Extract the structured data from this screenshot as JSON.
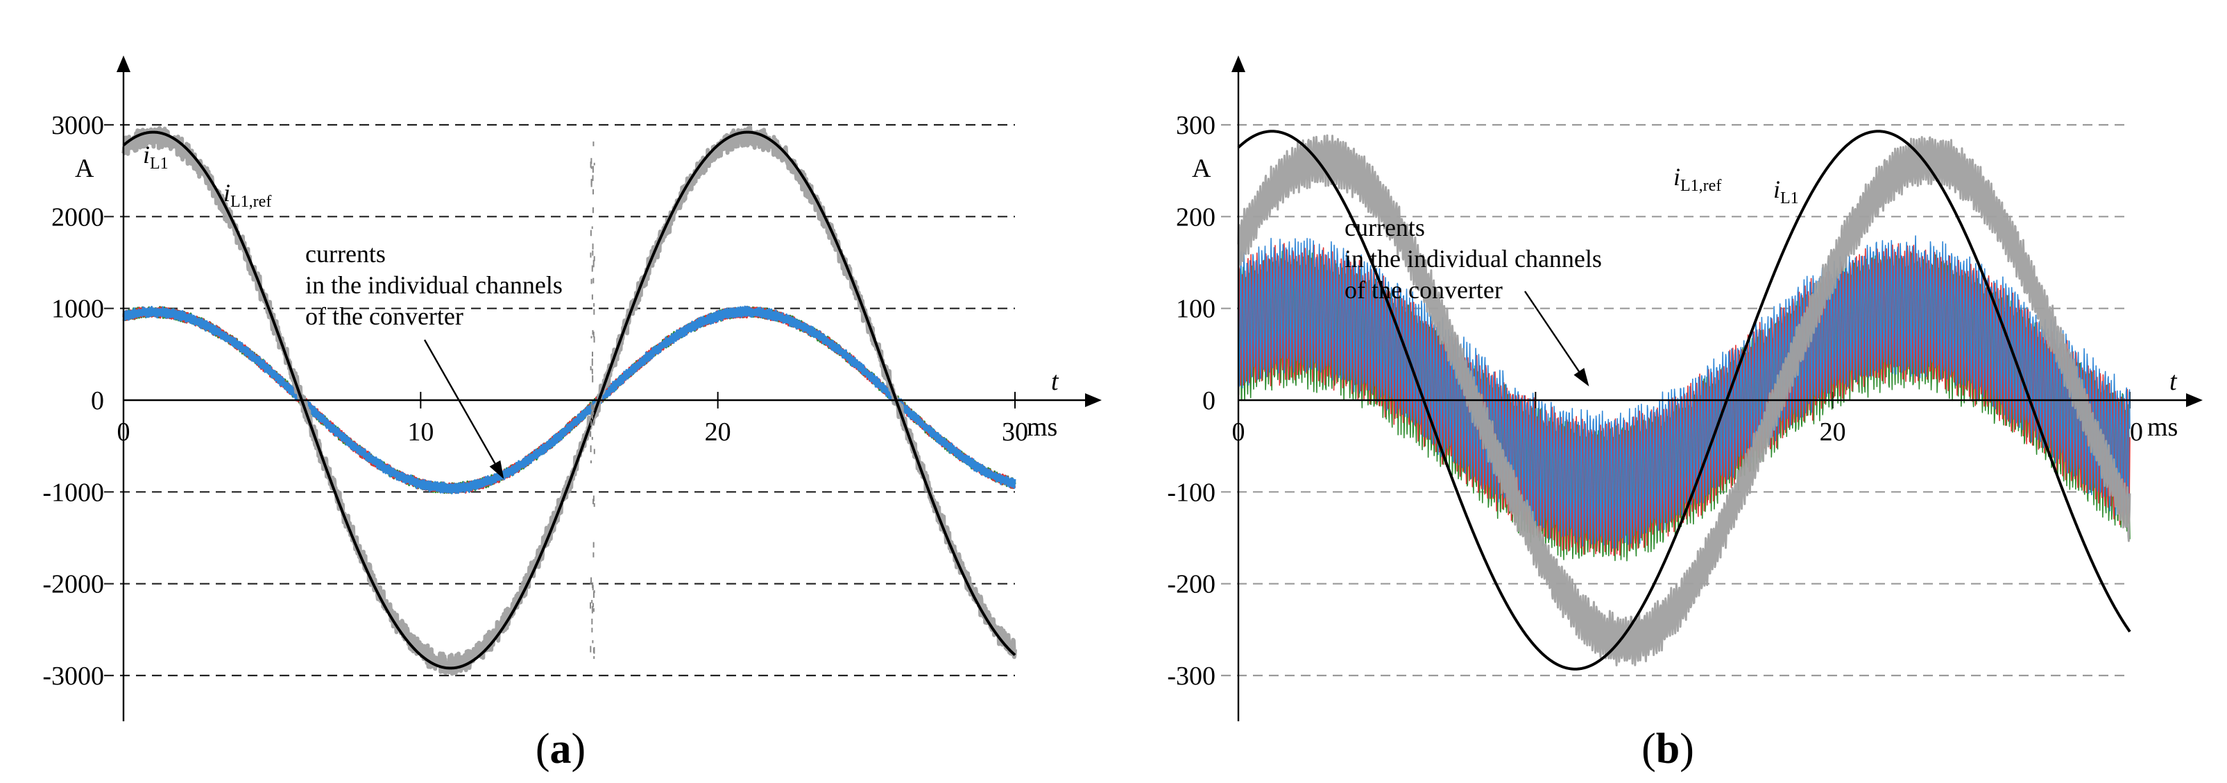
{
  "chart_data": [
    {
      "id": "a",
      "type": "line",
      "caption": {
        "open": "(",
        "letter": "a",
        "close": ")"
      },
      "xlabel": "t",
      "xunit": "ms",
      "yunit": "A",
      "xlim": [
        0,
        30
      ],
      "ylim": [
        -3000,
        3000
      ],
      "xticks": [
        0,
        10,
        20,
        30
      ],
      "xtick_labels": [
        "0",
        "10",
        "20",
        "30"
      ],
      "yticks": [
        3000,
        2000,
        1000,
        0,
        -1000,
        -2000,
        -3000
      ],
      "ytick_labels": [
        "3000",
        "2000",
        "1000",
        "0",
        "-1000",
        "-2000",
        "-3000"
      ],
      "grid": "dashed horizontal",
      "annotation": {
        "lines": [
          "currents",
          "in the individual channels",
          "of the converter"
        ],
        "arrow_target": [
          12.8,
          -860
        ]
      },
      "labels": [
        {
          "text": "i",
          "sub": "L1",
          "series": "i_L1"
        },
        {
          "text": "i",
          "sub": "L1,ref",
          "series": "i_L1_ref"
        }
      ],
      "series": [
        {
          "name": "i_L1,ref",
          "color": "#000000",
          "amplitude": 2920,
          "period_ms": 20,
          "phase_deg": 72,
          "x": [
            0,
            1.0,
            6.0,
            11.0,
            16.0,
            21.0,
            26.0,
            30
          ],
          "values": [
            2780,
            2920,
            0,
            -2920,
            0,
            2920,
            0,
            -2780
          ]
        },
        {
          "name": "i_L1",
          "color": "#a0a0a0",
          "amplitude": 2870,
          "period_ms": 20,
          "phase_deg": 72,
          "x": [
            0,
            1.0,
            6.0,
            11.0,
            16.0,
            21.0,
            26.0,
            30
          ],
          "values": [
            2730,
            2870,
            0,
            -2870,
            0,
            2870,
            0,
            -2730
          ]
        },
        {
          "name": "channel 1",
          "color": "#2e8b2e",
          "amplitude": 960,
          "period_ms": 20,
          "phase_deg": 72,
          "x": [
            0,
            1.0,
            6.0,
            11.0,
            16.0,
            21.0,
            26.0,
            30
          ],
          "values": [
            910,
            960,
            0,
            -960,
            0,
            960,
            0,
            -910
          ]
        },
        {
          "name": "channel 2",
          "color": "#e23030",
          "amplitude": 960,
          "period_ms": 20,
          "phase_deg": 72,
          "x": [
            0,
            1.0,
            6.0,
            11.0,
            16.0,
            21.0,
            26.0,
            30
          ],
          "values": [
            910,
            960,
            0,
            -960,
            0,
            960,
            0,
            -910
          ]
        },
        {
          "name": "channel 3",
          "color": "#2f86d6",
          "amplitude": 960,
          "period_ms": 20,
          "phase_deg": 72,
          "x": [
            0,
            1.0,
            6.0,
            11.0,
            16.0,
            21.0,
            26.0,
            30
          ],
          "values": [
            910,
            960,
            0,
            -960,
            0,
            960,
            0,
            -910
          ]
        }
      ]
    },
    {
      "id": "b",
      "type": "line",
      "caption": {
        "open": "(",
        "letter": "b",
        "close": ")"
      },
      "xlabel": "t",
      "xunit": "ms",
      "yunit": "A",
      "xlim": [
        0,
        30
      ],
      "ylim": [
        -300,
        300
      ],
      "xticks": [
        0,
        10,
        20,
        30
      ],
      "xtick_labels": [
        "0",
        "10",
        "20",
        "30"
      ],
      "yticks": [
        300,
        200,
        100,
        0,
        -100,
        -200,
        -300
      ],
      "ytick_labels": [
        "300",
        "200",
        "100",
        "0",
        "-100",
        "-200",
        "-300"
      ],
      "grid": "dashed horizontal",
      "annotation": {
        "lines": [
          "currents",
          "in the individual channels",
          "of the converter"
        ],
        "arrow_target": [
          11.8,
          15
        ]
      },
      "labels": [
        {
          "text": "i",
          "sub": "L1,ref",
          "series": "i_L1_ref"
        },
        {
          "text": "i",
          "sub": "L1",
          "series": "i_L1"
        }
      ],
      "series": [
        {
          "name": "i_L1,ref",
          "color": "#000000",
          "amplitude": 293,
          "period_ms": 20.4,
          "phase_deg": 70,
          "x": [
            0,
            0.3,
            8.9,
            13.9,
            18.8,
            28.9,
            30
          ],
          "values": [
            275,
            278,
            -293,
            0,
            293,
            -293,
            -280
          ]
        },
        {
          "name": "i_L1",
          "color": "#a0a0a0",
          "amplitude": 262,
          "period_ms": 20.4,
          "phase_deg": 40,
          "x": [
            0,
            2.5,
            8.9,
            13.9,
            18.4,
            28.5,
            30
          ],
          "values": [
            230,
            200,
            -262,
            0,
            262,
            -262,
            -250
          ]
        },
        {
          "name": "channel 1",
          "color": "#2e8b2e",
          "amplitude": 95,
          "period_ms": 20.4,
          "phase_deg": 55,
          "x": [
            0,
            8.4,
            13.0,
            18.3,
            30
          ],
          "values": [
            78,
            -100,
            0,
            100,
            -120
          ]
        },
        {
          "name": "channel 2",
          "color": "#e23030",
          "amplitude": 95,
          "period_ms": 20.4,
          "phase_deg": 55,
          "x": [
            0,
            8.4,
            13.0,
            18.3,
            30
          ],
          "values": [
            95,
            -90,
            0,
            105,
            -95
          ]
        },
        {
          "name": "channel 3",
          "color": "#2f86d6",
          "amplitude": 95,
          "period_ms": 20.4,
          "phase_deg": 55,
          "x": [
            0,
            8.4,
            13.0,
            18.3,
            30
          ],
          "values": [
            85,
            -95,
            0,
            100,
            -105
          ]
        }
      ]
    }
  ]
}
